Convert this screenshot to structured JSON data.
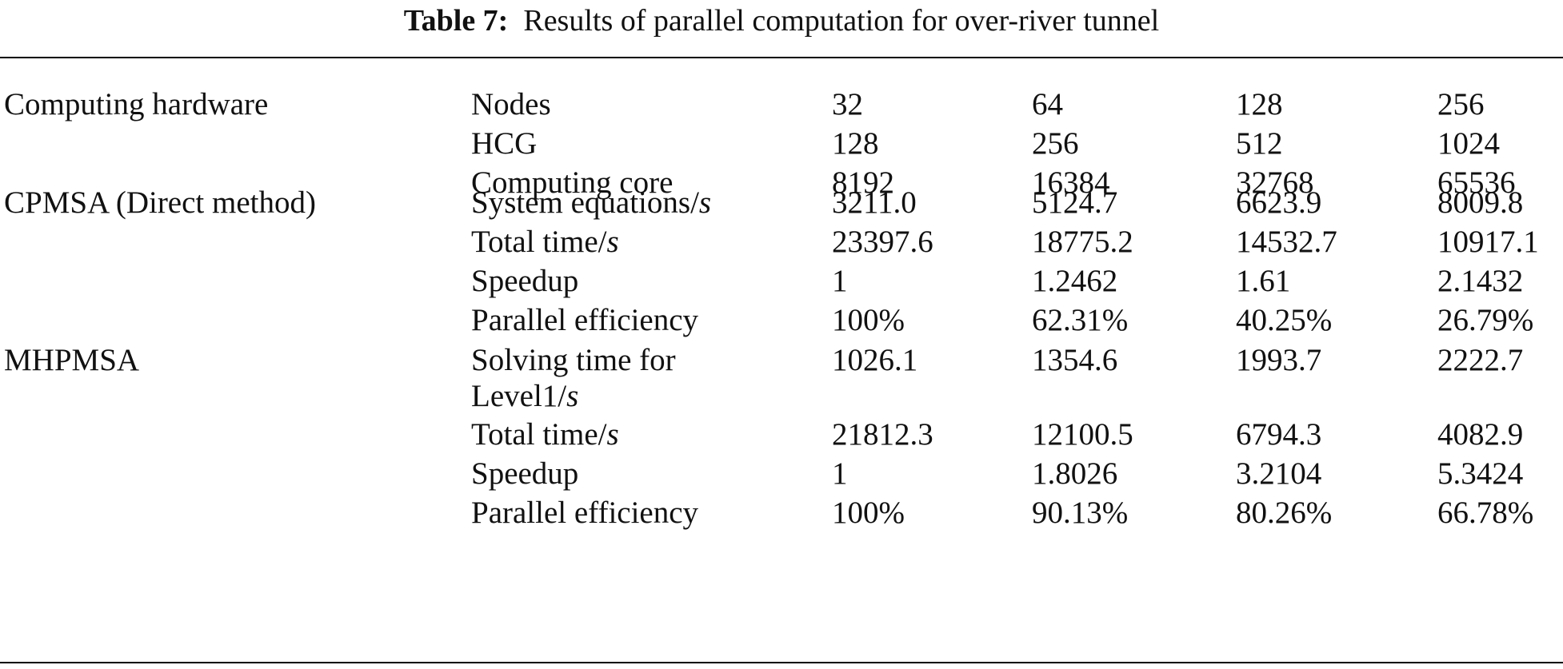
{
  "caption": {
    "label": "Table 7:",
    "text": "Results of parallel computation for over-river tunnel"
  },
  "table": {
    "groups": [
      {
        "label": "Computing hardware",
        "rows": [
          {
            "metric": "Nodes",
            "values": [
              "32",
              "64",
              "128",
              "256"
            ]
          },
          {
            "metric": "HCG",
            "values": [
              "128",
              "256",
              "512",
              "1024"
            ]
          },
          {
            "metric": "Computing core",
            "values": [
              "8192",
              "16384",
              "32768",
              "65536"
            ]
          }
        ]
      },
      {
        "label": "CPMSA (Direct method)",
        "rows": [
          {
            "metric": "System equations/",
            "unit": "s",
            "values": [
              "3211.0",
              "5124.7",
              "6623.9",
              "8009.8"
            ]
          },
          {
            "metric": "Total time/",
            "unit": "s",
            "values": [
              "23397.6",
              "18775.2",
              "14532.7",
              "10917.1"
            ]
          },
          {
            "metric": "Speedup",
            "values": [
              "1",
              "1.2462",
              "1.61",
              "2.1432"
            ]
          },
          {
            "metric": "Parallel efficiency",
            "values": [
              "100%",
              "62.31%",
              "40.25%",
              "26.79%"
            ]
          }
        ]
      },
      {
        "label": "MHPMSA",
        "rows": [
          {
            "metric": "Solving time for",
            "metric_line2": "Level1/",
            "unit": "s",
            "values": [
              "1026.1",
              "1354.6",
              "1993.7",
              "2222.7"
            ]
          },
          {
            "metric": "Total time/",
            "unit": "s",
            "values": [
              "21812.3",
              "12100.5",
              "6794.3",
              "4082.9"
            ]
          },
          {
            "metric": "Speedup",
            "values": [
              "1",
              "1.8026",
              "3.2104",
              "5.3424"
            ]
          },
          {
            "metric": "Parallel efficiency",
            "values": [
              "100%",
              "90.13%",
              "80.26%",
              "66.78%"
            ]
          }
        ]
      }
    ]
  }
}
